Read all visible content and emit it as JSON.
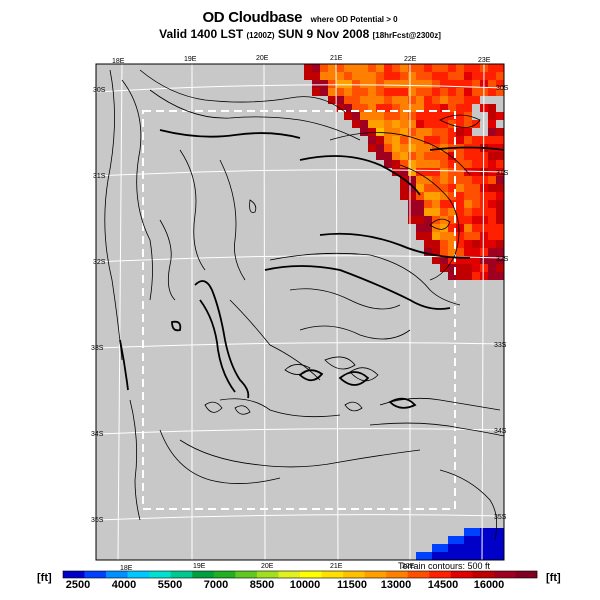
{
  "title": {
    "main": "OD Cloudbase",
    "sub": "where OD Potential > 0"
  },
  "subtitle": {
    "valid": "Valid 1400 LST",
    "zulu": "(1200Z)",
    "date": "SUN 9 Nov 2008",
    "forecast": "[18hrFcst@2300z]"
  },
  "map": {
    "lon_labels_top": [
      "18E",
      "19E",
      "20E",
      "21E",
      "22E",
      "23E"
    ],
    "lon_labels_bottom": [
      "18E",
      "19E",
      "20E",
      "21E",
      "22E"
    ],
    "lat_labels_left": [
      "30S",
      "31S",
      "32S",
      "33S",
      "34S",
      "35S"
    ],
    "lat_labels_right": [
      "30S",
      "31S",
      "32S",
      "33S",
      "34S",
      "35S"
    ],
    "terrain_note": "Terrain contours: 500 ft",
    "colors": {
      "land": "#c8c8c8",
      "contour": "#000000",
      "grid": "#ffffff",
      "inner_domain": "#ffffff"
    }
  },
  "colorbar": {
    "unit_left": "[ft]",
    "unit_right": "[ft]",
    "labels": [
      "2500",
      "4000",
      "5500",
      "7000",
      "8500",
      "10000",
      "11500",
      "13000",
      "14500",
      "16000"
    ],
    "colors": [
      "#0000c8",
      "#0040ff",
      "#0090ff",
      "#00c8ff",
      "#00e0d0",
      "#00c890",
      "#00a040",
      "#20b020",
      "#60c820",
      "#a0e020",
      "#e0f020",
      "#ffff00",
      "#ffe000",
      "#ffc000",
      "#ffa000",
      "#ff8000",
      "#ff5000",
      "#ff2000",
      "#e00000",
      "#c00000",
      "#a00020",
      "#800020"
    ]
  }
}
